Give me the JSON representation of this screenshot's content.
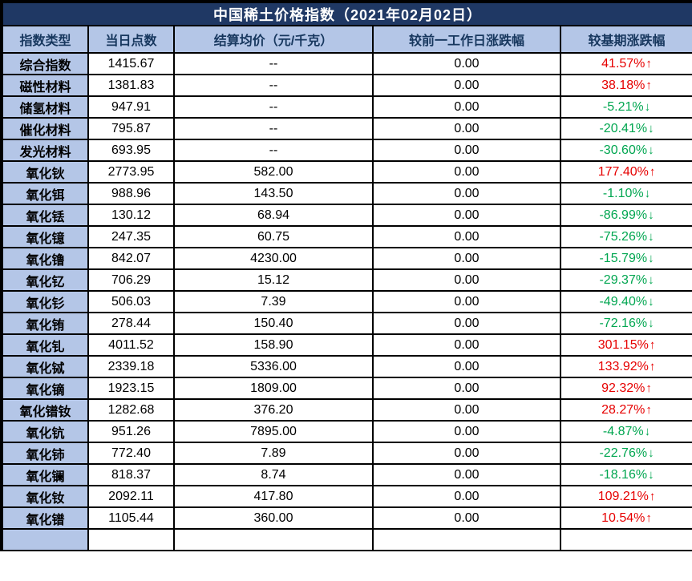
{
  "chart_data": {
    "type": "table",
    "title": "中国稀土价格指数（2021年02月02日）",
    "columns": [
      "指数类型",
      "当日点数",
      "结算均价（元/千克）",
      "较前一工作日涨跌幅",
      "较基期涨跌幅"
    ],
    "rows": [
      {
        "index_type": "综合指数",
        "day_points": "1415.67",
        "settle_avg_price": "--",
        "vs_prev_workday_change": "0.00",
        "vs_base_change": "41.57%",
        "trend": "up"
      },
      {
        "index_type": "磁性材料",
        "day_points": "1381.83",
        "settle_avg_price": "--",
        "vs_prev_workday_change": "0.00",
        "vs_base_change": "38.18%",
        "trend": "up"
      },
      {
        "index_type": "储氢材料",
        "day_points": "947.91",
        "settle_avg_price": "--",
        "vs_prev_workday_change": "0.00",
        "vs_base_change": "-5.21%",
        "trend": "down"
      },
      {
        "index_type": "催化材料",
        "day_points": "795.87",
        "settle_avg_price": "--",
        "vs_prev_workday_change": "0.00",
        "vs_base_change": "-20.41%",
        "trend": "down"
      },
      {
        "index_type": "发光材料",
        "day_points": "693.95",
        "settle_avg_price": "--",
        "vs_prev_workday_change": "0.00",
        "vs_base_change": "-30.60%",
        "trend": "down"
      },
      {
        "index_type": "氧化钬",
        "day_points": "2773.95",
        "settle_avg_price": "582.00",
        "vs_prev_workday_change": "0.00",
        "vs_base_change": "177.40%",
        "trend": "up"
      },
      {
        "index_type": "氧化铒",
        "day_points": "988.96",
        "settle_avg_price": "143.50",
        "vs_prev_workday_change": "0.00",
        "vs_base_change": "-1.10%",
        "trend": "down"
      },
      {
        "index_type": "氧化铥",
        "day_points": "130.12",
        "settle_avg_price": "68.94",
        "vs_prev_workday_change": "0.00",
        "vs_base_change": "-86.99%",
        "trend": "down"
      },
      {
        "index_type": "氧化镱",
        "day_points": "247.35",
        "settle_avg_price": "60.75",
        "vs_prev_workday_change": "0.00",
        "vs_base_change": "-75.26%",
        "trend": "down"
      },
      {
        "index_type": "氧化镥",
        "day_points": "842.07",
        "settle_avg_price": "4230.00",
        "vs_prev_workday_change": "0.00",
        "vs_base_change": "-15.79%",
        "trend": "down"
      },
      {
        "index_type": "氧化钇",
        "day_points": "706.29",
        "settle_avg_price": "15.12",
        "vs_prev_workday_change": "0.00",
        "vs_base_change": "-29.37%",
        "trend": "down"
      },
      {
        "index_type": "氧化钐",
        "day_points": "506.03",
        "settle_avg_price": "7.39",
        "vs_prev_workday_change": "0.00",
        "vs_base_change": "-49.40%",
        "trend": "down"
      },
      {
        "index_type": "氧化铕",
        "day_points": "278.44",
        "settle_avg_price": "150.40",
        "vs_prev_workday_change": "0.00",
        "vs_base_change": "-72.16%",
        "trend": "down"
      },
      {
        "index_type": "氧化钆",
        "day_points": "4011.52",
        "settle_avg_price": "158.90",
        "vs_prev_workday_change": "0.00",
        "vs_base_change": "301.15%",
        "trend": "up"
      },
      {
        "index_type": "氧化铽",
        "day_points": "2339.18",
        "settle_avg_price": "5336.00",
        "vs_prev_workday_change": "0.00",
        "vs_base_change": "133.92%",
        "trend": "up"
      },
      {
        "index_type": "氧化镝",
        "day_points": "1923.15",
        "settle_avg_price": "1809.00",
        "vs_prev_workday_change": "0.00",
        "vs_base_change": "92.32%",
        "trend": "up"
      },
      {
        "index_type": "氧化镨钕",
        "day_points": "1282.68",
        "settle_avg_price": "376.20",
        "vs_prev_workday_change": "0.00",
        "vs_base_change": "28.27%",
        "trend": "up"
      },
      {
        "index_type": "氧化钪",
        "day_points": "951.26",
        "settle_avg_price": "7895.00",
        "vs_prev_workday_change": "0.00",
        "vs_base_change": "-4.87%",
        "trend": "down"
      },
      {
        "index_type": "氧化铈",
        "day_points": "772.40",
        "settle_avg_price": "7.89",
        "vs_prev_workday_change": "0.00",
        "vs_base_change": "-22.76%",
        "trend": "down"
      },
      {
        "index_type": "氧化镧",
        "day_points": "818.37",
        "settle_avg_price": "8.74",
        "vs_prev_workday_change": "0.00",
        "vs_base_change": "-18.16%",
        "trend": "down"
      },
      {
        "index_type": "氧化钕",
        "day_points": "2092.11",
        "settle_avg_price": "417.80",
        "vs_prev_workday_change": "0.00",
        "vs_base_change": "109.21%",
        "trend": "up"
      },
      {
        "index_type": "氧化镨",
        "day_points": "1105.44",
        "settle_avg_price": "360.00",
        "vs_prev_workday_change": "0.00",
        "vs_base_change": "10.54%",
        "trend": "up"
      }
    ]
  },
  "trend_arrows": {
    "up": "↑",
    "down": "↓"
  },
  "colors": {
    "up": "#e60000",
    "down": "#00a650",
    "title_bg": "#1f3864",
    "header_bg": "#b4c6e7",
    "row_label_bg": "#b4c6e7",
    "grid": "#000000"
  }
}
